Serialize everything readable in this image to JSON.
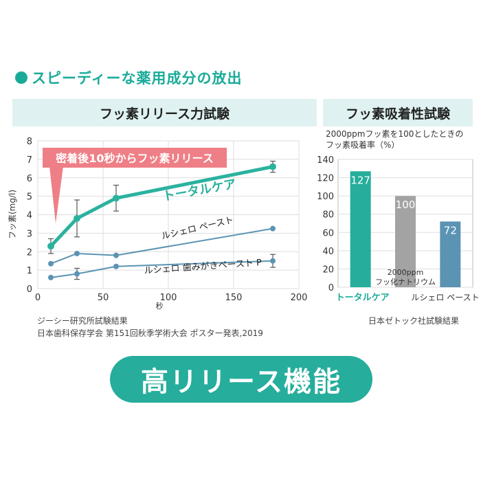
{
  "headline": "スピーディーな薬用成分の放出",
  "panels": {
    "left_title": "フッ素リリース力試験",
    "right_title": "フッ素吸着性試験",
    "right_subtitle_1": "2000ppmフッ素を100としたときの",
    "right_subtitle_2": "フッ素吸着率（%）"
  },
  "footnotes": {
    "left_1": "ジーシー研究所試験結果",
    "left_2": "日本歯科保存学会 第151回秋季学術大会 ポスター発表,2019",
    "right": "日本ゼトック社試験結果"
  },
  "bottom_label": "高リリース機能",
  "colors": {
    "teal": "#2bb29f",
    "teal_light": "#dff2f1",
    "blue": "#5b93b3",
    "gray": "#9c9c9c",
    "callout": "#ef7f86"
  },
  "chart_data": [
    {
      "type": "line",
      "title": "フッ素リリース力試験",
      "xlabel": "秒",
      "ylabel": "フッ素(mg/l)",
      "xlim": [
        0,
        200
      ],
      "ylim": [
        0,
        8
      ],
      "xticks": [
        "0",
        "50",
        "100",
        "150",
        "200"
      ],
      "yticks": [
        "0",
        "1",
        "2",
        "3",
        "4",
        "5",
        "6",
        "7",
        "8"
      ],
      "grid": true,
      "callout": "密着後10秒からフッ素リリース",
      "series": [
        {
          "name": "トータルケア",
          "color": "#2bb29f",
          "x": [
            10,
            30,
            60,
            180
          ],
          "y": [
            2.3,
            3.8,
            4.9,
            6.6
          ],
          "err": [
            0.4,
            1.0,
            0.7,
            0.3
          ]
        },
        {
          "name": "ルシェロ ペースト",
          "color": "#5b93b3",
          "x": [
            10,
            30,
            60,
            180
          ],
          "y": [
            1.35,
            1.9,
            1.8,
            3.25
          ],
          "err": [
            0,
            0,
            0,
            0
          ]
        },
        {
          "name": "ルシェロ 歯みがきペースト P",
          "color": "#5b93b3",
          "x": [
            10,
            30,
            60,
            180
          ],
          "y": [
            0.6,
            0.8,
            1.2,
            1.5
          ],
          "err": [
            0,
            0.3,
            0,
            0.35
          ]
        }
      ]
    },
    {
      "type": "bar",
      "title": "フッ素吸着性試験",
      "ylim": [
        0,
        140
      ],
      "yticks": [
        "0",
        "20",
        "40",
        "60",
        "80",
        "100",
        "120",
        "140"
      ],
      "grid": true,
      "categories": [
        "トータルケア",
        "2000ppm フッ化ナトリウム",
        "ルシェロ ペースト"
      ],
      "values": [
        127,
        100,
        72
      ],
      "colors": [
        "#26ad9c",
        "#a3a3a3",
        "#5b93b3"
      ]
    }
  ]
}
